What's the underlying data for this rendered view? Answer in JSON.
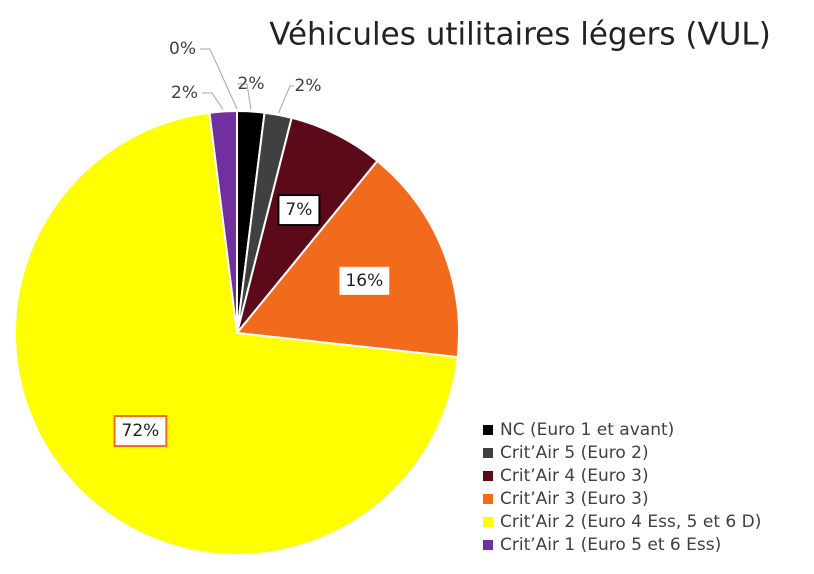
{
  "chart_data": {
    "type": "pie",
    "title": "Véhicules utilitaires légers (VUL)",
    "categories": [
      "NC (Euro 1 et avant)",
      "Crit’Air 5 (Euro 2)",
      "Crit’Air 4 (Euro 3)",
      "Crit’Air 3 (Euro 3)",
      "Crit’Air 2 (Euro 4 Ess, 5 et 6 D)",
      "Crit’Air 1 (Euro 5 et 6 Ess)",
      null
    ],
    "values": [
      2,
      2,
      7,
      16,
      72,
      2,
      0
    ],
    "value_labels": [
      "2%",
      "2%",
      "7%",
      "16%",
      "72%",
      "2%",
      "0%"
    ],
    "colors": [
      "#000000",
      "#404040",
      "#5c0a1a",
      "#f26b1d",
      "#ffff00",
      "#7030a0",
      "#70ad47"
    ],
    "legend": "bottom-right"
  }
}
